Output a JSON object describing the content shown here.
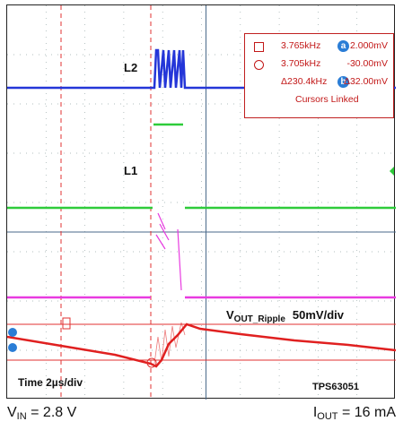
{
  "chart_data": {
    "type": "line",
    "title": "",
    "time_scale": "Time 2µs/div",
    "part_number": "TPS63051",
    "traces": [
      {
        "name": "L2",
        "color": "#2436d8"
      },
      {
        "name": "L1",
        "color": "#2ecc3a"
      },
      {
        "name": "V",
        "name_sub": "OUT_Ripple",
        "scale": "50mV/div",
        "color": "#e02020"
      },
      {
        "name": "",
        "color": "#e83be0"
      }
    ],
    "cursor_readout": {
      "a_freq": "3.765kHz",
      "a_value": "2.000mV",
      "b_freq": "3.705kHz",
      "b_value": "-30.00mV",
      "delta_freq": "Δ230.4kHz",
      "delta_value": "Δ32.00mV",
      "status": "Cursors Linked",
      "badge_a": "a",
      "badge_b": "b"
    }
  },
  "conditions": {
    "vin_label": "V",
    "vin_sub": "IN",
    "vin_value": "= 2.8 V",
    "iout_label": "I",
    "iout_sub": "OUT",
    "iout_value": "= 16 mA"
  }
}
